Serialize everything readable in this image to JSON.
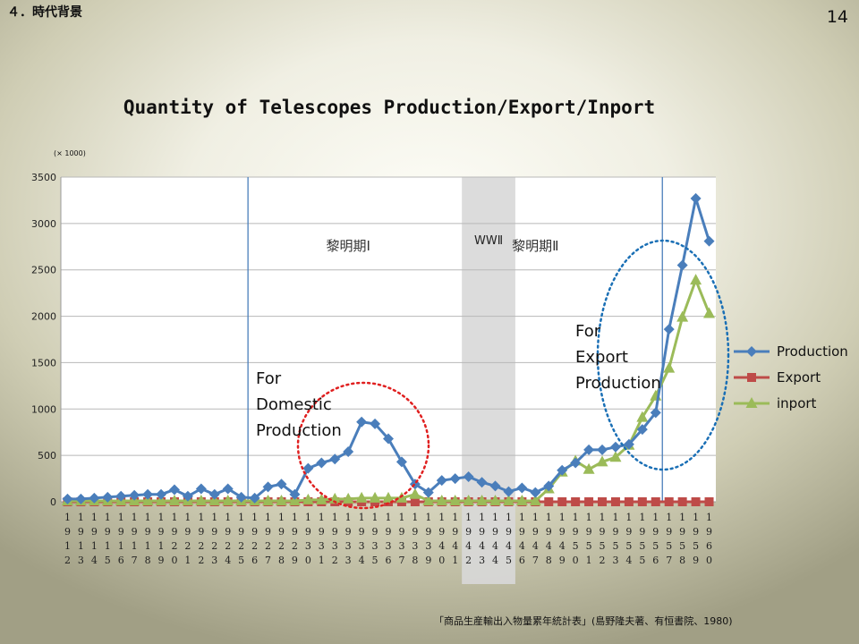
{
  "header": {
    "section": "４．時代背景",
    "page_number": "14"
  },
  "footer": {
    "source": "「商品生産輸出入物量累年統計表」(島野隆夫著、有恒書院、1980)"
  },
  "chart_data": {
    "type": "line",
    "title": "Quantity of Telescopes Production/Export/Inport",
    "unit_label": "(× 1000)",
    "ylim": [
      0,
      3500
    ],
    "yticks": [
      0,
      500,
      1000,
      1500,
      2000,
      2500,
      3000,
      3500
    ],
    "grid": true,
    "legend_position": "right",
    "x": [
      1912,
      1913,
      1914,
      1915,
      1916,
      1917,
      1918,
      1919,
      1920,
      1921,
      1922,
      1923,
      1924,
      1925,
      1926,
      1927,
      1928,
      1929,
      1930,
      1931,
      1932,
      1933,
      1934,
      1935,
      1936,
      1937,
      1938,
      1939,
      1940,
      1941,
      1942,
      1943,
      1944,
      1945,
      1946,
      1947,
      1948,
      1949,
      1950,
      1951,
      1952,
      1953,
      1954,
      1955,
      1956,
      1957,
      1958,
      1959,
      1960
    ],
    "series": [
      {
        "name": "Production",
        "color": "#4a7ebb",
        "marker": "diamond",
        "values": [
          30,
          30,
          40,
          50,
          60,
          70,
          80,
          80,
          130,
          60,
          140,
          80,
          140,
          50,
          40,
          160,
          190,
          80,
          360,
          420,
          460,
          540,
          860,
          840,
          680,
          430,
          190,
          100,
          230,
          250,
          270,
          210,
          170,
          110,
          150,
          100,
          170,
          340,
          420,
          560,
          560,
          590,
          620,
          780,
          960,
          1860,
          2550,
          3270,
          2810
        ]
      },
      {
        "name": "Export",
        "color": "#be4b48",
        "marker": "square",
        "values": [
          0,
          0,
          0,
          0,
          0,
          0,
          0,
          0,
          0,
          0,
          0,
          0,
          0,
          0,
          0,
          0,
          0,
          0,
          0,
          0,
          0,
          0,
          0,
          0,
          0,
          0,
          0,
          0,
          0,
          0,
          0,
          0,
          0,
          0,
          0,
          0,
          0,
          0,
          0,
          0,
          0,
          0,
          0,
          0,
          0,
          0,
          0,
          0,
          0
        ]
      },
      {
        "name": "inport",
        "color": "#9bbb59",
        "marker": "triangle",
        "values": [
          10,
          10,
          10,
          10,
          10,
          10,
          10,
          10,
          10,
          10,
          10,
          10,
          10,
          10,
          10,
          10,
          10,
          10,
          20,
          20,
          30,
          30,
          40,
          40,
          40,
          40,
          80,
          10,
          10,
          10,
          10,
          10,
          10,
          10,
          10,
          10,
          140,
          320,
          440,
          350,
          430,
          480,
          610,
          910,
          1140,
          1440,
          1990,
          2390,
          2030
        ]
      }
    ],
    "shaded_region": {
      "from": 1942,
      "to": 1945,
      "label": "WWⅡ"
    },
    "vlines": [
      1925.5,
      1956.5
    ],
    "period_labels": [
      {
        "text": "黎明期Ⅰ",
        "x": 1933
      },
      {
        "text": "黎明期Ⅱ",
        "x": 1947
      }
    ],
    "annotations": [
      {
        "lines": [
          "For",
          "Domestic",
          "Production"
        ],
        "color": "#e02020",
        "x": 1934.5,
        "y": 750
      },
      {
        "lines": [
          "For",
          "Export",
          "Production"
        ],
        "color": "#1a6fb5",
        "x": 1954.5,
        "y": 1430
      }
    ]
  }
}
